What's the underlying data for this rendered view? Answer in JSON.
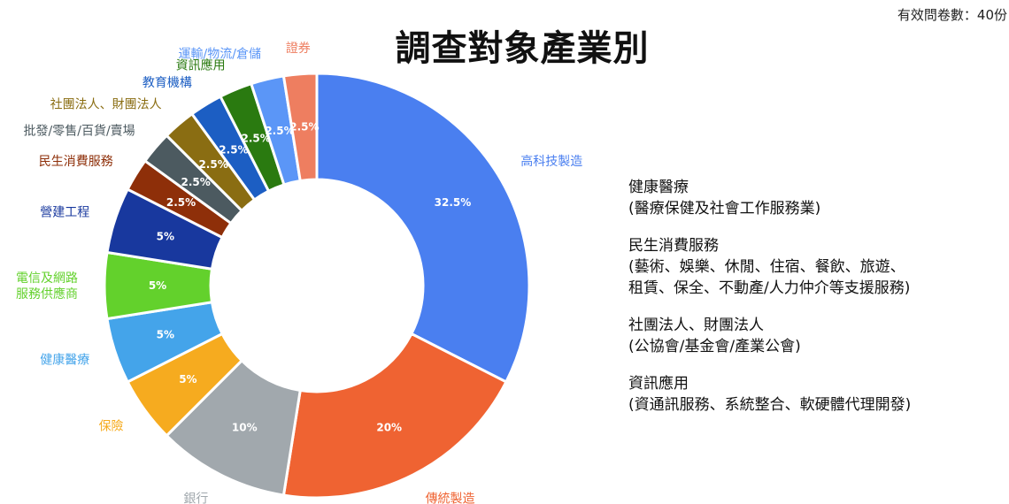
{
  "header": {
    "respondents": "有效問卷數：40份"
  },
  "chart_data": {
    "type": "pie",
    "donut": true,
    "title": "調查對象產業別",
    "unit": "%",
    "slices": [
      {
        "label": "高科技製造",
        "value": 32.5,
        "value_label": "32.5%",
        "color": "#4a7ff0"
      },
      {
        "label": "傳統製造",
        "value": 20,
        "value_label": "20%",
        "color": "#ef6332"
      },
      {
        "label": "銀行",
        "value": 10,
        "value_label": "10%",
        "color": "#a1a8ad"
      },
      {
        "label": "保險",
        "value": 5,
        "value_label": "5%",
        "color": "#f6ab1f"
      },
      {
        "label": "健康醫療",
        "value": 5,
        "value_label": "5%",
        "color": "#44a4ea"
      },
      {
        "label": "電信及網路\n服務供應商",
        "value": 5,
        "value_label": "5%",
        "color": "#63d12c"
      },
      {
        "label": "營建工程",
        "value": 5,
        "value_label": "5%",
        "color": "#18389e"
      },
      {
        "label": "民生消費服務",
        "value": 2.5,
        "value_label": "2.5%",
        "color": "#8e2f09"
      },
      {
        "label": "批發/零售/百貨/賣場",
        "value": 2.5,
        "value_label": "2.5%",
        "color": "#4c5a60"
      },
      {
        "label": "社團法人、財團法人",
        "value": 2.5,
        "value_label": "2.5%",
        "color": "#8a6d12"
      },
      {
        "label": "教育機構",
        "value": 2.5,
        "value_label": "2.5%",
        "color": "#1c5ec3"
      },
      {
        "label": "資訊應用",
        "value": 2.5,
        "value_label": "2.5%",
        "color": "#2a7a10"
      },
      {
        "label": "運輸/物流/倉儲",
        "value": 2.5,
        "value_label": "2.5%",
        "color": "#5b96f7"
      },
      {
        "label": "證券",
        "value": 2.5,
        "value_label": "2.5%",
        "color": "#ee7e60"
      }
    ]
  },
  "notes": [
    {
      "name": "健康醫療",
      "detail": "(醫療保健及社會工作服務業)"
    },
    {
      "name": "民生消費服務",
      "detail": "(藝術、娛樂、休閒、住宿、餐飲、旅遊、\n租賃、保全、不動產/人力仲介等支援服務)"
    },
    {
      "name": "社團法人、財團法人",
      "detail": "(公協會/基金會/產業公會)"
    },
    {
      "name": "資訊應用",
      "detail": "(資通訊服務、系統整合、軟硬體代理開發)"
    }
  ]
}
